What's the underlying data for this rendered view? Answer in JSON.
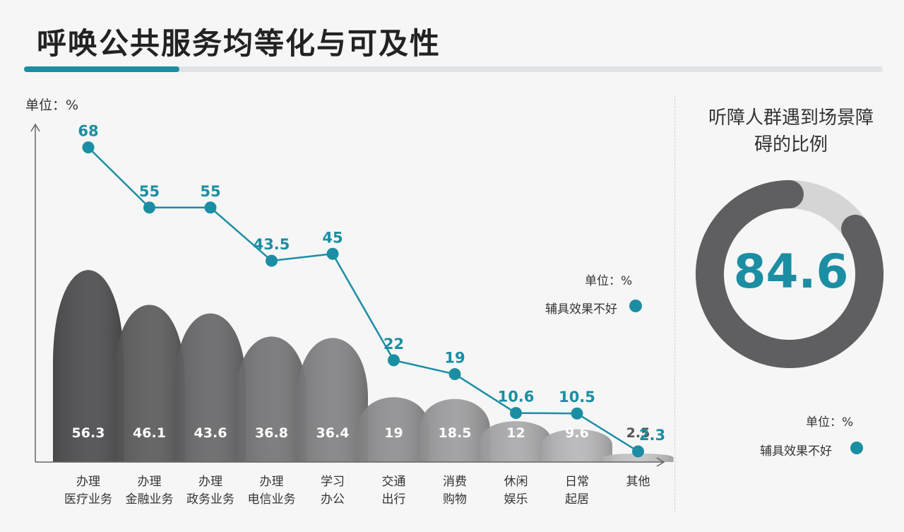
{
  "title": "呼唤公共服务均等化与可及性",
  "unit_left": "单位：%",
  "legend1": {
    "unit": "单位：%",
    "label": "辅具效果不好"
  },
  "legend2": {
    "unit": "单位：%",
    "label": "辅具效果不好"
  },
  "donut": {
    "title": "听障人群遇到场景障碍的比例",
    "value_label": "84.6",
    "value": 84.6,
    "color_fill": "#5f5f61",
    "color_rest": "#d5d5d5"
  },
  "colors": {
    "accent": "#1b8ea3",
    "bar_dark": "#4a4a4c",
    "bar_light": "#c4c4c6"
  },
  "chart_data": {
    "type": "bar+line",
    "categories": [
      [
        "办理",
        "医疗业务"
      ],
      [
        "办理",
        "金融业务"
      ],
      [
        "办理",
        "政务业务"
      ],
      [
        "办理",
        "电信业务"
      ],
      [
        "学习",
        "办公"
      ],
      [
        "交通",
        "出行"
      ],
      [
        "消费",
        "购物"
      ],
      [
        "休闲",
        "娱乐"
      ],
      [
        "日常",
        "起居"
      ],
      [
        "其他"
      ]
    ],
    "bars": {
      "values": [
        56.3,
        46.1,
        43.6,
        36.8,
        36.4,
        19,
        18.5,
        12,
        9.6,
        2.5
      ],
      "labels": [
        "56.3",
        "46.1",
        "43.6",
        "36.8",
        "36.4",
        "19",
        "18.5",
        "12",
        "9.6",
        "2.5"
      ]
    },
    "line": {
      "name": "辅具效果不好",
      "values": [
        68,
        55,
        55,
        43.5,
        45,
        22,
        19,
        10.6,
        10.5,
        2.3
      ],
      "labels": [
        "68",
        "55",
        "55",
        "43.5",
        "45",
        "22",
        "19",
        "10.6",
        "10.5",
        "2.3"
      ]
    },
    "ylim": [
      0,
      75
    ],
    "ylabel": "单位：%"
  }
}
